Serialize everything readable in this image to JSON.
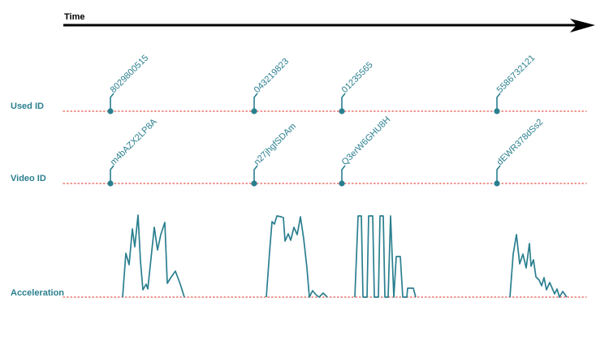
{
  "time_label": "Time",
  "colors": {
    "axis": "#000000",
    "teal": "#2a7f8f",
    "dotted_line": "#e5584f"
  },
  "rows": [
    {
      "key": "used",
      "label": "Used ID"
    },
    {
      "key": "video",
      "label": "Video ID"
    },
    {
      "key": "accel",
      "label": "Acceleration"
    }
  ],
  "used_ids": [
    "8029800515",
    "043219823",
    "01235565",
    "5586732121"
  ],
  "video_ids": [
    "m4bAZX2LP8A",
    "n27jhgfSDAm",
    "Q3erW6GHU8H",
    "dEWR378dSs2"
  ]
}
